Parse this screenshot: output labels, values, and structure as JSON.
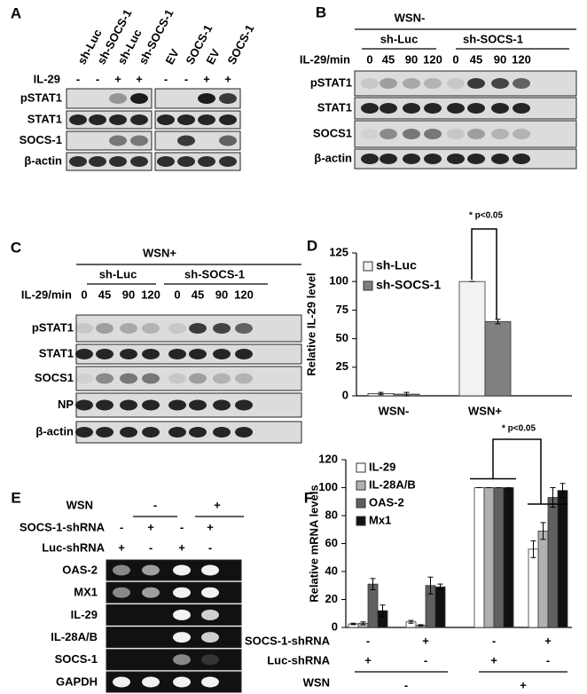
{
  "panels": {
    "A": {
      "label": "A",
      "lanes": [
        "sh-Luc",
        "sh-SOCS-1",
        "sh-Luc",
        "sh-SOCS-1",
        "EV",
        "SOCS-1",
        "EV",
        "SOCS-1"
      ],
      "treatment": {
        "label": "IL-29",
        "signs": [
          "-",
          "-",
          "+",
          "+",
          "-",
          "-",
          "+",
          "+"
        ]
      },
      "rows": [
        "pSTAT1",
        "STAT1",
        "SOCS-1",
        "β-actin"
      ]
    },
    "B": {
      "label": "B",
      "header": "WSN-",
      "groups": [
        "sh-Luc",
        "sh-SOCS-1"
      ],
      "time_label": "IL-29/min",
      "times": [
        "0",
        "45",
        "90",
        "120",
        "0",
        "45",
        "90",
        "120"
      ],
      "rows": [
        "pSTAT1",
        "STAT1",
        "SOCS1",
        "β-actin"
      ]
    },
    "C": {
      "label": "C",
      "header": "WSN+",
      "groups": [
        "sh-Luc",
        "sh-SOCS-1"
      ],
      "time_label": "IL-29/min",
      "times": [
        "0",
        "45",
        "90",
        "120",
        "0",
        "45",
        "90",
        "120"
      ],
      "rows": [
        "pSTAT1",
        "STAT1",
        "SOCS1",
        "NP",
        "β-actin"
      ]
    },
    "E": {
      "label": "E",
      "wsn": {
        "label": "WSN",
        "signs": [
          "-",
          "+"
        ]
      },
      "conditions": [
        {
          "label": "SOCS-1-shRNA",
          "signs": [
            "-",
            "+",
            "-",
            "+"
          ]
        },
        {
          "label": "Luc-shRNA",
          "signs": [
            "+",
            "-",
            "+",
            "-"
          ]
        }
      ],
      "rows": [
        "OAS-2",
        "MX1",
        "IL-29",
        "IL-28A/B",
        "SOCS-1",
        "GAPDH"
      ]
    }
  },
  "chart_data": [
    {
      "type": "bar",
      "panel": "D",
      "ylabel": "Relative IL-29 level",
      "categories": [
        "WSN-",
        "WSN+"
      ],
      "series": [
        {
          "name": "sh-Luc",
          "color": "#f2f2f2",
          "values": [
            2,
            100
          ],
          "errors": [
            1,
            0
          ]
        },
        {
          "name": "sh-SOCS-1",
          "color": "#808080",
          "values": [
            1.5,
            65
          ],
          "errors": [
            1.5,
            2
          ]
        }
      ],
      "ylim": [
        0,
        125
      ],
      "yticks": [
        0,
        25,
        50,
        75,
        100,
        125
      ],
      "annotation": "* p<0.05"
    },
    {
      "type": "bar",
      "panel": "F",
      "ylabel": "Relative mRNA levels",
      "categories": [
        null,
        null,
        null,
        null
      ],
      "series": [
        {
          "name": "IL-29",
          "color": "#ffffff",
          "values": [
            2.5,
            4,
            100,
            56
          ],
          "errors": [
            0.5,
            1,
            0,
            6
          ]
        },
        {
          "name": "IL-28A/B",
          "color": "#b0b0b0",
          "values": [
            3,
            1.5,
            100,
            69
          ],
          "errors": [
            1,
            0.5,
            0,
            6
          ]
        },
        {
          "name": "OAS-2",
          "color": "#606060",
          "values": [
            31,
            30,
            100,
            93
          ],
          "errors": [
            4,
            6,
            0,
            7
          ]
        },
        {
          "name": "Mx1",
          "color": "#111111",
          "values": [
            12,
            29,
            100,
            98
          ],
          "errors": [
            4,
            2,
            0,
            5
          ]
        }
      ],
      "ylim": [
        0,
        120
      ],
      "yticks": [
        0,
        20,
        40,
        60,
        80,
        100,
        120
      ],
      "annotation": "* p<0.05",
      "conditions": [
        {
          "label": "SOCS-1-shRNA",
          "signs": [
            "-",
            "+",
            "-",
            "+"
          ]
        },
        {
          "label": "Luc-shRNA",
          "signs": [
            "+",
            "-",
            "+",
            "-"
          ]
        }
      ],
      "wsn": {
        "label": "WSN",
        "signs": [
          "-",
          "+"
        ]
      }
    }
  ]
}
